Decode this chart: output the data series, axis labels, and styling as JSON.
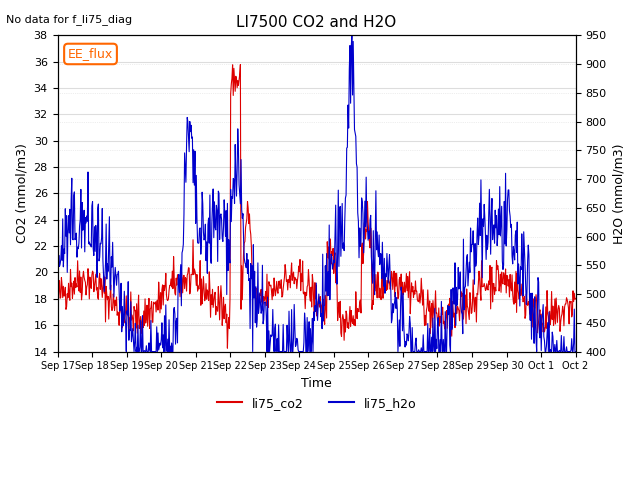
{
  "title": "LI7500 CO2 and H2O",
  "subtitle": "No data for f_li75_diag",
  "xlabel": "Time",
  "ylabel_left": "CO2 (mmol/m3)",
  "ylabel_right": "H2O (mmol/m3)",
  "ylim_left": [
    14,
    38
  ],
  "ylim_right": [
    400,
    950
  ],
  "yticks_left": [
    14,
    16,
    18,
    20,
    22,
    24,
    26,
    28,
    30,
    32,
    34,
    36,
    38
  ],
  "yticks_right": [
    400,
    450,
    500,
    550,
    600,
    650,
    700,
    750,
    800,
    850,
    900,
    950
  ],
  "color_co2": "#dd0000",
  "color_h2o": "#0000cc",
  "legend_label_co2": "li75_co2",
  "legend_label_h2o": "li75_h2o",
  "annotation_box": "EE_flux",
  "annotation_box_color": "#ff6600",
  "grid_color": "#dddddd",
  "background_color": "#ffffff",
  "n_points": 800,
  "xtick_labels": [
    "Sep 17",
    "Sep 18",
    "Sep 19",
    "Sep 20",
    "Sep 21",
    "Sep 22",
    "Sep 23",
    "Sep 24",
    "Sep 25",
    "Sep 26",
    "Sep 27",
    "Sep 28",
    "Sep 29",
    "Sep 30",
    "Oct 1",
    "Oct 2"
  ]
}
